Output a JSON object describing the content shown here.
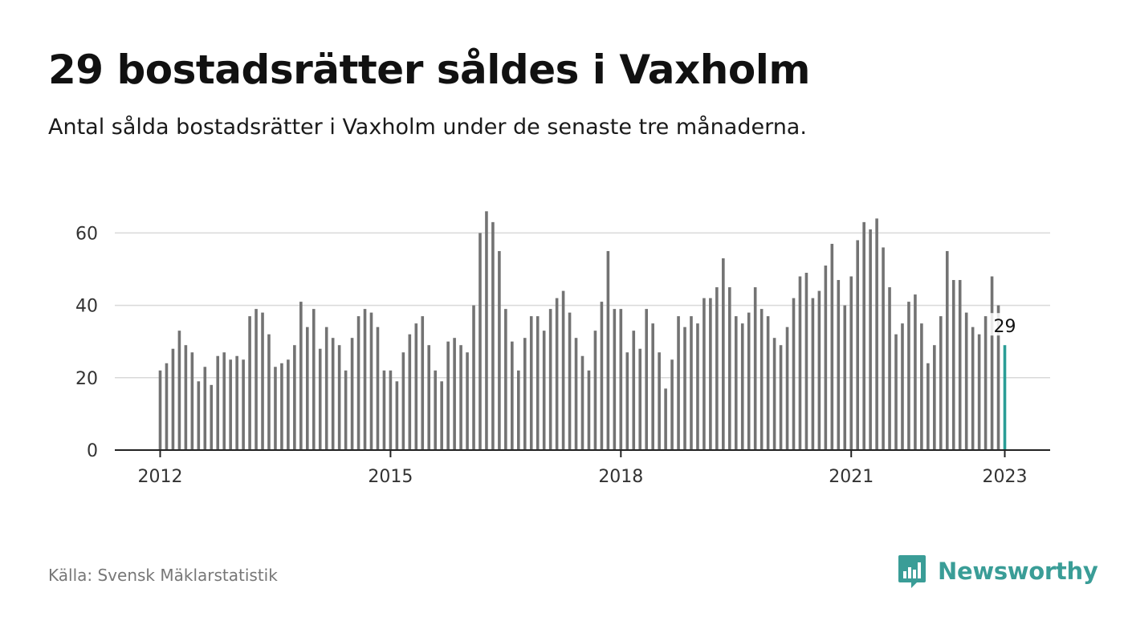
{
  "title": "29 bostadsrätter såldes i Vaxholm",
  "subtitle": "Antal sålda bostadsrätter i Vaxholm under de senaste tre månaderna.",
  "source": "Källa: Svensk Mäklarstatistik",
  "logo": {
    "text": "Newsworthy",
    "icon": "newsworthy-logo-icon",
    "color": "#3a9d97"
  },
  "chart_data": {
    "type": "bar",
    "title": "29 bostadsrätter såldes i Vaxholm",
    "subtitle": "Antal sålda bostadsrätter i Vaxholm under de senaste tre månaderna.",
    "xlabel": "",
    "ylabel": "",
    "x_range": [
      "2012-01",
      "2023-01"
    ],
    "ylim": [
      0,
      70
    ],
    "yticks": [
      0,
      20,
      40,
      60
    ],
    "xticks": [
      "2012",
      "2015",
      "2018",
      "2021",
      "2023"
    ],
    "grid": true,
    "bar_color": "#737373",
    "highlight_color": "#2a9d96",
    "highlight_label": "29",
    "series": [
      {
        "values": [
          22,
          24,
          28,
          33,
          29,
          27,
          19,
          23,
          18,
          26,
          27,
          25,
          26,
          25,
          37,
          39,
          38,
          32,
          23,
          24,
          25,
          29,
          41,
          34,
          39,
          28,
          34,
          31,
          29,
          22,
          31,
          37,
          39,
          38,
          34,
          22,
          22,
          19,
          27,
          32,
          35,
          37,
          29,
          22,
          19,
          30,
          31,
          29,
          27,
          40,
          60,
          66,
          63,
          55,
          39,
          30,
          22,
          31,
          37,
          37,
          33,
          39,
          42,
          44,
          38,
          31,
          26,
          22,
          33,
          41,
          55,
          39,
          39,
          27,
          33,
          28,
          39,
          35,
          27,
          17,
          25,
          37,
          34,
          37,
          35,
          42,
          42,
          45,
          53,
          45,
          37,
          35,
          38,
          45,
          39,
          37,
          31,
          29,
          34,
          42,
          48,
          49,
          42,
          44,
          51,
          57,
          47,
          40,
          48,
          58,
          63,
          61,
          64,
          56,
          45,
          32,
          35,
          41,
          43,
          35,
          24,
          29,
          37,
          55,
          47,
          47,
          38,
          34,
          32,
          37,
          48,
          40,
          29
        ]
      }
    ]
  }
}
